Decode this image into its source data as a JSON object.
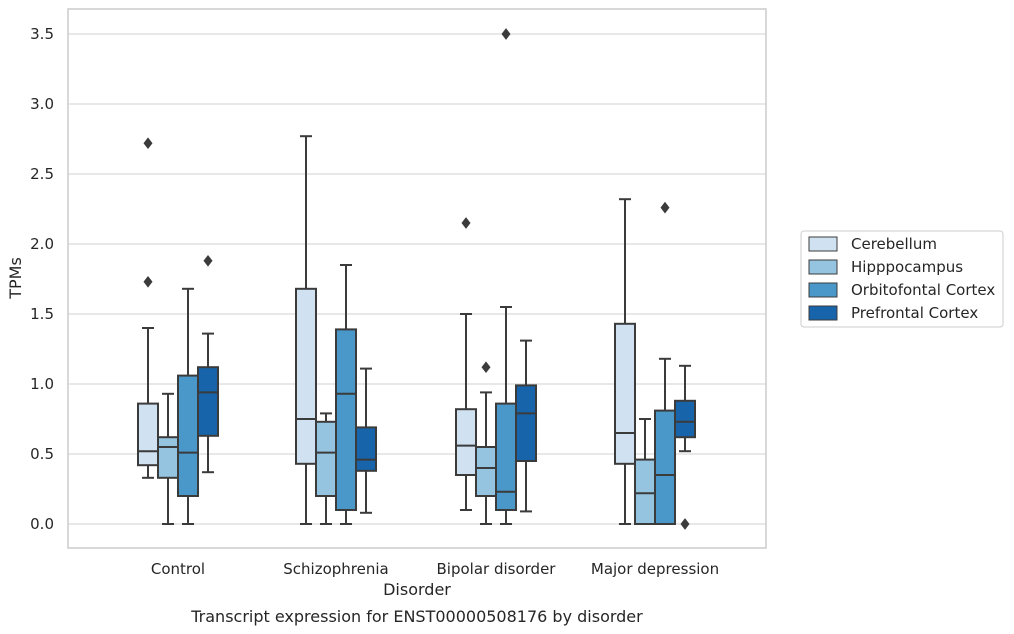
{
  "chart_data": {
    "type": "boxplot",
    "title": "",
    "caption": "Transcript expression for ENST00000508176 by disorder",
    "xlabel": "Disorder",
    "ylabel": "TPMs",
    "ylim": [
      -0.17,
      3.68
    ],
    "yticks": [
      "0.0",
      "0.5",
      "1.0",
      "1.5",
      "2.0",
      "2.5",
      "3.0",
      "3.5"
    ],
    "grid": "horizontal",
    "legend_position": "right",
    "categories": [
      "Control",
      "Schizophrenia",
      "Bipolar disorder",
      "Major depression"
    ],
    "series": [
      {
        "name": "Cerebellum",
        "color": "#d0e1f2",
        "boxes": [
          {
            "whislo": 0.33,
            "q1": 0.42,
            "med": 0.52,
            "q3": 0.86,
            "whishi": 1.4,
            "fliers": [
              1.73,
              2.72
            ]
          },
          {
            "whislo": 0.0,
            "q1": 0.43,
            "med": 0.75,
            "q3": 1.68,
            "whishi": 2.77,
            "fliers": []
          },
          {
            "whislo": 0.1,
            "q1": 0.35,
            "med": 0.56,
            "q3": 0.82,
            "whishi": 1.5,
            "fliers": [
              2.15
            ]
          },
          {
            "whislo": 0.0,
            "q1": 0.43,
            "med": 0.65,
            "q3": 1.43,
            "whishi": 2.32,
            "fliers": []
          }
        ]
      },
      {
        "name": "Hipppocampus",
        "color": "#94c4df",
        "boxes": [
          {
            "whislo": 0.0,
            "q1": 0.33,
            "med": 0.55,
            "q3": 0.62,
            "whishi": 0.93,
            "fliers": []
          },
          {
            "whislo": 0.0,
            "q1": 0.2,
            "med": 0.51,
            "q3": 0.73,
            "whishi": 0.79,
            "fliers": []
          },
          {
            "whislo": 0.0,
            "q1": 0.2,
            "med": 0.4,
            "q3": 0.55,
            "whishi": 0.94,
            "fliers": [
              1.12
            ]
          },
          {
            "whislo": 0.0,
            "q1": 0.0,
            "med": 0.22,
            "q3": 0.46,
            "whishi": 0.75,
            "fliers": []
          }
        ]
      },
      {
        "name": "Orbitofontal Cortex",
        "color": "#4a98c9",
        "boxes": [
          {
            "whislo": 0.0,
            "q1": 0.2,
            "med": 0.51,
            "q3": 1.06,
            "whishi": 1.68,
            "fliers": []
          },
          {
            "whislo": 0.0,
            "q1": 0.1,
            "med": 0.93,
            "q3": 1.39,
            "whishi": 1.85,
            "fliers": []
          },
          {
            "whislo": 0.0,
            "q1": 0.1,
            "med": 0.23,
            "q3": 0.86,
            "whishi": 1.55,
            "fliers": [
              3.5
            ]
          },
          {
            "whislo": 0.0,
            "q1": 0.0,
            "med": 0.35,
            "q3": 0.81,
            "whishi": 1.18,
            "fliers": [
              2.26
            ]
          }
        ]
      },
      {
        "name": "Prefrontal Cortex",
        "color": "#1764ab",
        "boxes": [
          {
            "whislo": 0.37,
            "q1": 0.63,
            "med": 0.94,
            "q3": 1.12,
            "whishi": 1.36,
            "fliers": [
              1.88
            ]
          },
          {
            "whislo": 0.08,
            "q1": 0.38,
            "med": 0.46,
            "q3": 0.69,
            "whishi": 1.11,
            "fliers": []
          },
          {
            "whislo": 0.09,
            "q1": 0.45,
            "med": 0.79,
            "q3": 0.99,
            "whishi": 1.31,
            "fliers": []
          },
          {
            "whislo": 0.52,
            "q1": 0.62,
            "med": 0.73,
            "q3": 0.88,
            "whishi": 1.13,
            "fliers": [
              0.0
            ]
          }
        ]
      }
    ]
  }
}
